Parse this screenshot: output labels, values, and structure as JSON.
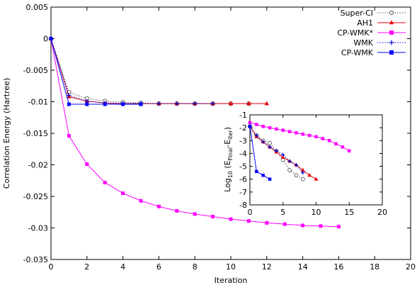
{
  "chart_data": [
    {
      "type": "line",
      "xlabel": "Iteration",
      "ylabel": "Correlation Energy (Hartree)",
      "xlim": [
        0,
        20
      ],
      "ylim": [
        -0.035,
        0.005
      ],
      "xticks": [
        "0",
        "2",
        "4",
        "6",
        "8",
        "10",
        "12",
        "14",
        "16",
        "18",
        "20"
      ],
      "yticks": [
        "0.005",
        "0",
        "-0.005",
        "-0.01",
        "-0.015",
        "-0.02",
        "-0.025",
        "-0.03",
        "-0.035"
      ],
      "legend_position": "top-right",
      "series": [
        {
          "name": "Super-CI",
          "color": "#555555",
          "line": "dotted",
          "marker": "open-circle",
          "x": [
            0,
            1,
            2,
            3,
            4,
            5,
            6,
            7,
            8,
            9,
            10,
            11
          ],
          "y": [
            0,
            -0.0085,
            -0.0095,
            -0.0099,
            -0.0101,
            -0.0102,
            -0.0103,
            -0.0103,
            -0.0103,
            -0.0103,
            -0.0103,
            -0.0103
          ]
        },
        {
          "name": "AH1",
          "color": "#e8000b",
          "line": "solid",
          "marker": "triangle",
          "x": [
            0,
            1,
            2,
            3,
            4,
            5,
            6,
            7,
            8,
            9,
            10,
            11,
            12
          ],
          "y": [
            0,
            -0.0092,
            -0.0099,
            -0.0102,
            -0.0103,
            -0.0103,
            -0.0103,
            -0.0103,
            -0.0103,
            -0.0103,
            -0.0103,
            -0.0103,
            -0.0103
          ]
        },
        {
          "name": "CP-WMK*",
          "color": "#ff00ff",
          "line": "solid",
          "marker": "square",
          "x": [
            0,
            1,
            2,
            3,
            4,
            5,
            6,
            7,
            8,
            9,
            10,
            11,
            12,
            13,
            14,
            15,
            16
          ],
          "y": [
            0,
            -0.0154,
            -0.0199,
            -0.0228,
            -0.0245,
            -0.0257,
            -0.0266,
            -0.0273,
            -0.0278,
            -0.0282,
            -0.0286,
            -0.0289,
            -0.0292,
            -0.0294,
            -0.0296,
            -0.0297,
            -0.0298
          ]
        },
        {
          "name": "WMK",
          "color": "#0000cc",
          "line": "dotted",
          "marker": "plus",
          "x": [
            0,
            1,
            2,
            3,
            4,
            5,
            6,
            7,
            8,
            9
          ],
          "y": [
            0,
            -0.009,
            -0.0099,
            -0.0102,
            -0.0103,
            -0.0103,
            -0.0103,
            -0.0103,
            -0.0103,
            -0.0103
          ]
        },
        {
          "name": "CP-WMK",
          "color": "#0000ff",
          "line": "solid",
          "marker": "filled-square",
          "x": [
            0,
            1,
            2,
            3,
            4,
            5
          ],
          "y": [
            0,
            -0.0104,
            -0.0104,
            -0.0104,
            -0.0104,
            -0.0104
          ]
        }
      ]
    },
    {
      "type": "line",
      "ylabel_main": "Log",
      "ylabel_sub10": "10",
      "ylabel_open": " (E",
      "ylabel_sub_final": "Final",
      "ylabel_mid": "-E",
      "ylabel_sub_iter": "iter",
      "ylabel_close": ")",
      "xlim": [
        0,
        20
      ],
      "ylim": [
        -8,
        -1
      ],
      "xticks": [
        "0",
        "5",
        "10",
        "15",
        "20"
      ],
      "yticks": [
        "-1",
        "-2",
        "-3",
        "-4",
        "-5",
        "-6",
        "-7",
        "-8"
      ],
      "series": [
        {
          "name": "Super-CI",
          "color": "#555555",
          "line": "dotted",
          "marker": "open-circle",
          "x": [
            0,
            1,
            2,
            3,
            4,
            5,
            6,
            7,
            8
          ],
          "y": [
            -1.9,
            -2.6,
            -3.0,
            -3.2,
            -3.8,
            -4.5,
            -5.3,
            -5.7,
            -6.0
          ]
        },
        {
          "name": "AH1",
          "color": "#e8000b",
          "line": "solid",
          "marker": "triangle",
          "x": [
            0,
            1,
            2,
            3,
            4,
            5,
            6,
            7,
            8,
            9,
            10
          ],
          "y": [
            -1.9,
            -2.7,
            -3.1,
            -3.5,
            -3.9,
            -4.3,
            -4.6,
            -4.9,
            -5.3,
            -5.7,
            -6.0
          ]
        },
        {
          "name": "CP-WMK*",
          "color": "#ff00ff",
          "line": "solid",
          "marker": "square",
          "x": [
            0,
            1,
            2,
            3,
            4,
            5,
            6,
            7,
            8,
            9,
            10,
            11,
            12,
            13,
            14,
            15
          ],
          "y": [
            -1.6,
            -1.75,
            -1.9,
            -2.0,
            -2.1,
            -2.2,
            -2.3,
            -2.4,
            -2.5,
            -2.6,
            -2.7,
            -2.85,
            -3.0,
            -3.25,
            -3.5,
            -3.8
          ]
        },
        {
          "name": "WMK",
          "color": "#0000cc",
          "line": "dotted",
          "marker": "plus",
          "x": [
            0,
            1,
            2,
            3,
            4,
            5,
            6,
            7,
            8
          ],
          "y": [
            -1.9,
            -2.6,
            -3.1,
            -3.5,
            -3.8,
            -4.1,
            -4.6,
            -4.9,
            -5.5
          ]
        },
        {
          "name": "CP-WMK",
          "color": "#0000ff",
          "line": "solid",
          "marker": "filled-square",
          "x": [
            0,
            1,
            2,
            3
          ],
          "y": [
            -1.9,
            -5.4,
            -5.7,
            -6.0
          ]
        }
      ]
    }
  ]
}
